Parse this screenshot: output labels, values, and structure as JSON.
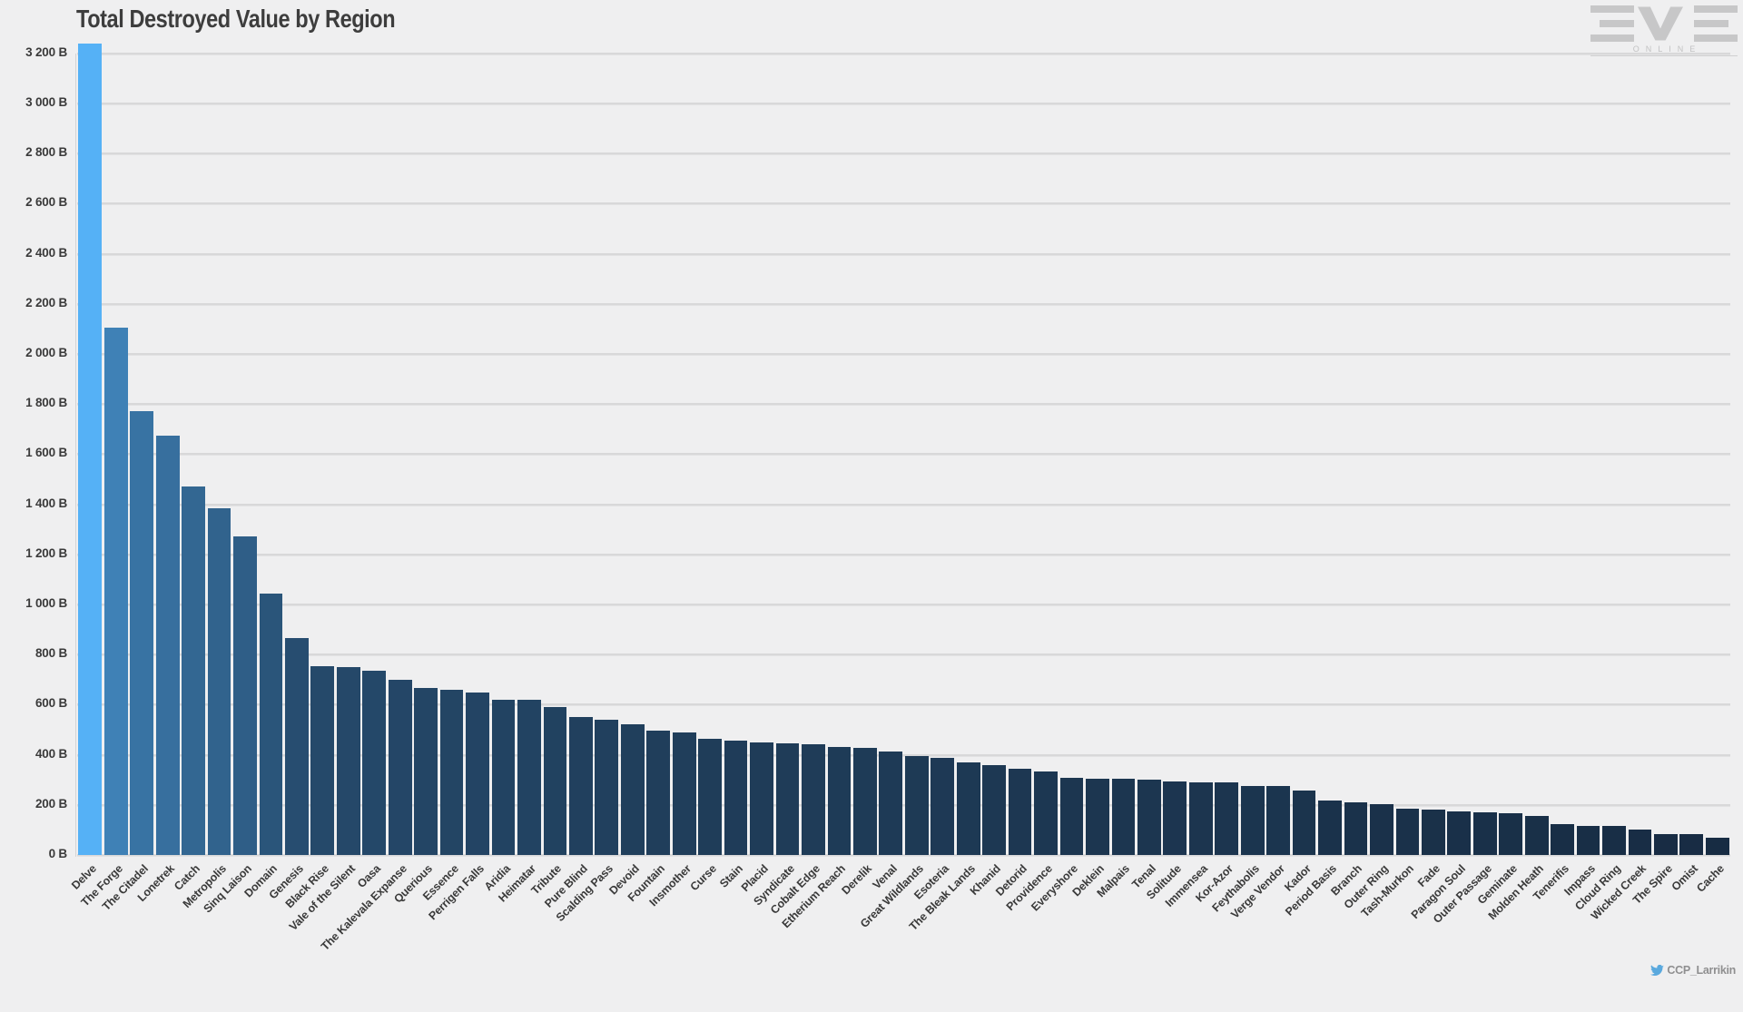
{
  "page": {
    "background": "#efeff0"
  },
  "header": {
    "title": "Total Destroyed Value by Region"
  },
  "branding": {
    "logo_name": "eve-online-logo",
    "logo_text_main": "EVE",
    "logo_text_sub": "ONLINE"
  },
  "footer": {
    "twitter_icon": "twitter-bird-icon",
    "twitter_handle": "CCP_Larrikin"
  },
  "chart_data": {
    "type": "bar",
    "title": "Total Destroyed Value by Region",
    "xlabel": "",
    "ylabel": "",
    "unit": "B",
    "ylim": [
      0,
      3200
    ],
    "ytick_step": 200,
    "grid": true,
    "legend": false,
    "y_tick_labels": [
      "0 B",
      "200 B",
      "400 B",
      "600 B",
      "800 B",
      "1 000 B",
      "1 200 B",
      "1 400 B",
      "1 600 B",
      "1 800 B",
      "2 000 B",
      "2 200 B",
      "2 400 B",
      "2 600 B",
      "2 800 B",
      "3 000 B",
      "3 200 B"
    ],
    "bar_color_scale": {
      "mapped_to": "value",
      "min_color": "#16293F",
      "max_color": "#55B1F6"
    },
    "categories": [
      "Delve",
      "The Forge",
      "The Citadel",
      "Lonetrek",
      "Catch",
      "Metropolis",
      "Sinq Laison",
      "Domain",
      "Genesis",
      "Black Rise",
      "Vale of the Silent",
      "Oasa",
      "The Kalevala Expanse",
      "Querious",
      "Essence",
      "Perrigen Falls",
      "Aridia",
      "Heimatar",
      "Tribute",
      "Pure Blind",
      "Scalding Pass",
      "Devoid",
      "Fountain",
      "Insmother",
      "Curse",
      "Stain",
      "Placid",
      "Syndicate",
      "Cobalt Edge",
      "Etherium Reach",
      "Derelik",
      "Venal",
      "Great Wildlands",
      "Esoteria",
      "The Bleak Lands",
      "Khanid",
      "Detorid",
      "Providence",
      "Everyshore",
      "Deklein",
      "Malpais",
      "Tenal",
      "Solitude",
      "Immensea",
      "Kor-Azor",
      "Feythabolis",
      "Verge Vendor",
      "Kador",
      "Period Basis",
      "Branch",
      "Outer Ring",
      "Tash-Murkon",
      "Fade",
      "Paragon Soul",
      "Outer Passage",
      "Geminate",
      "Molden Heath",
      "Tenerifis",
      "Impass",
      "Cloud Ring",
      "Wicked Creek",
      "The Spire",
      "Omist",
      "Cache"
    ],
    "values": [
      3240,
      2105,
      1770,
      1675,
      1470,
      1385,
      1270,
      1045,
      865,
      755,
      750,
      735,
      700,
      665,
      660,
      650,
      620,
      618,
      590,
      550,
      540,
      520,
      495,
      490,
      465,
      455,
      450,
      447,
      443,
      432,
      428,
      413,
      395,
      388,
      370,
      360,
      345,
      333,
      308,
      305,
      304,
      301,
      294,
      291,
      290,
      276,
      275,
      256,
      218,
      210,
      202,
      186,
      180,
      173,
      169,
      168,
      156,
      124,
      117,
      116,
      100,
      83,
      82,
      68
    ]
  }
}
